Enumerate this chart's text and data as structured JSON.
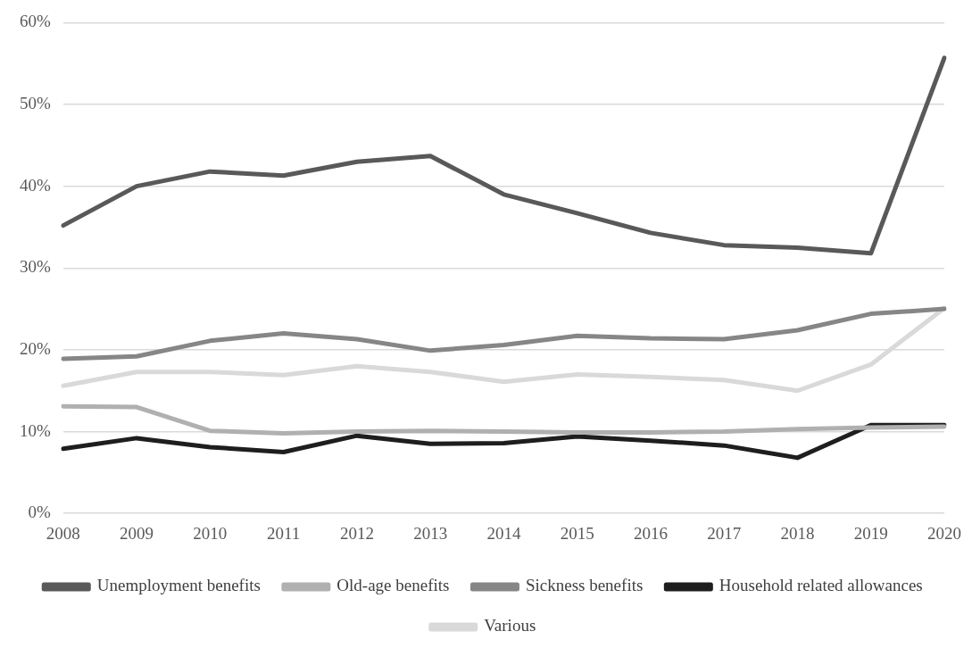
{
  "chart_data": {
    "type": "line",
    "categories": [
      "2008",
      "2009",
      "2010",
      "2011",
      "2012",
      "2013",
      "2014",
      "2015",
      "2016",
      "2017",
      "2018",
      "2019",
      "2020"
    ],
    "series": [
      {
        "name": "Unemployment benefits",
        "color": "#595959",
        "values": [
          35.2,
          40.0,
          41.8,
          41.3,
          43.0,
          43.7,
          39.0,
          36.7,
          34.3,
          32.8,
          32.5,
          31.8,
          55.7
        ]
      },
      {
        "name": "Old-age benefits",
        "color": "#b0b0b0",
        "values": [
          13.1,
          13.0,
          10.1,
          9.8,
          10.0,
          10.1,
          10.0,
          9.9,
          9.9,
          10.0,
          10.3,
          10.5,
          10.6
        ]
      },
      {
        "name": "Sickness benefits",
        "color": "#868686",
        "values": [
          18.9,
          19.2,
          21.1,
          22.0,
          21.3,
          19.9,
          20.6,
          21.7,
          21.4,
          21.3,
          22.4,
          24.4,
          25.0
        ]
      },
      {
        "name": "Household related allowances",
        "color": "#1e1e1e",
        "values": [
          7.9,
          9.2,
          8.1,
          7.5,
          9.5,
          8.5,
          8.6,
          9.4,
          8.9,
          8.3,
          6.8,
          10.8,
          10.8
        ]
      },
      {
        "name": "Various",
        "color": "#d9d9d9",
        "values": [
          15.6,
          17.3,
          17.3,
          16.9,
          18.0,
          17.3,
          16.1,
          17.0,
          16.7,
          16.3,
          15.0,
          18.2,
          25.1
        ]
      }
    ],
    "ylim": [
      0,
      60
    ],
    "yticks": [
      {
        "value": 0,
        "label": "0%"
      },
      {
        "value": 10,
        "label": "10%"
      },
      {
        "value": 20,
        "label": "20%"
      },
      {
        "value": 30,
        "label": "30%"
      },
      {
        "value": 40,
        "label": "40%"
      },
      {
        "value": 50,
        "label": "50%"
      },
      {
        "value": 60,
        "label": "60%"
      }
    ],
    "grid": "y",
    "legend": "bottom",
    "marker": "none",
    "line_style": "solid"
  }
}
